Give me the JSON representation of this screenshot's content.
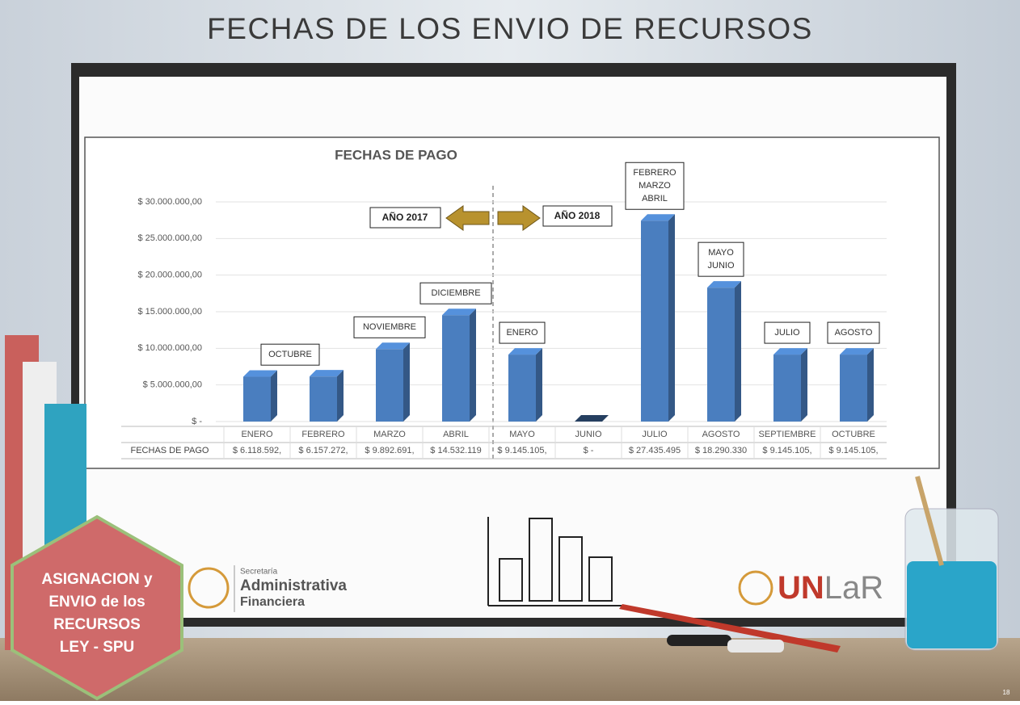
{
  "slide": {
    "title": "FECHAS DE LOS ENVIO DE RECURSOS",
    "badge_lines": [
      "ASIGNACION y",
      "ENVIO de los",
      "RECURSOS",
      "LEY - SPU"
    ],
    "secretaria_lines": [
      "Secretaría",
      "Administrativa",
      "Financiera"
    ],
    "unlar_logo": [
      "UN",
      "LaR"
    ],
    "page_number": "18"
  },
  "chart_data": {
    "type": "bar",
    "title": "FECHAS DE PAGO",
    "categories": [
      "ENERO",
      "FEBRERO",
      "MARZO",
      "ABRIL",
      "MAYO",
      "JUNIO",
      "JULIO",
      "AGOSTO",
      "SEPTIEMBRE",
      "OCTUBRE"
    ],
    "values": [
      6118592,
      6157272,
      9892691,
      14532119,
      9145105,
      0,
      27435495,
      18290330,
      9145105,
      9145105
    ],
    "value_labels": [
      "$ 6.118.592,",
      "$ 6.157.272,",
      "$ 9.892.691,",
      "$ 14.532.119",
      "$ 9.145.105,",
      "$ -",
      "$ 27.435.495",
      "$ 18.290.330",
      "$ 9.145.105,",
      "$ 9.145.105,"
    ],
    "table_label": "FECHAS DE PAGO",
    "bar_notes": [
      null,
      [
        "OCTUBRE"
      ],
      [
        "NOVIEMBRE"
      ],
      [
        "DICIEMBRE"
      ],
      [
        "ENERO"
      ],
      null,
      [
        "FEBRERO",
        "MARZO",
        "ABRIL"
      ],
      [
        "MAYO",
        "JUNIO"
      ],
      [
        "JULIO"
      ],
      [
        "AGOSTO"
      ]
    ],
    "period_labels": [
      "AÑO 2017",
      "AÑO 2018"
    ],
    "color": "#4a7ebf",
    "ylim": [
      0,
      30000000
    ],
    "yticks": [
      {
        "value": 0,
        "label": "$ -"
      },
      {
        "value": 5000000,
        "label": "$ 5.000.000,00"
      },
      {
        "value": 10000000,
        "label": "$ 10.000.000,00"
      },
      {
        "value": 15000000,
        "label": "$ 15.000.000,00"
      },
      {
        "value": 20000000,
        "label": "$ 20.000.000,00"
      },
      {
        "value": 25000000,
        "label": "$ 25.000.000,00"
      },
      {
        "value": 30000000,
        "label": "$ 30.000.000,00"
      }
    ],
    "grid": true
  }
}
